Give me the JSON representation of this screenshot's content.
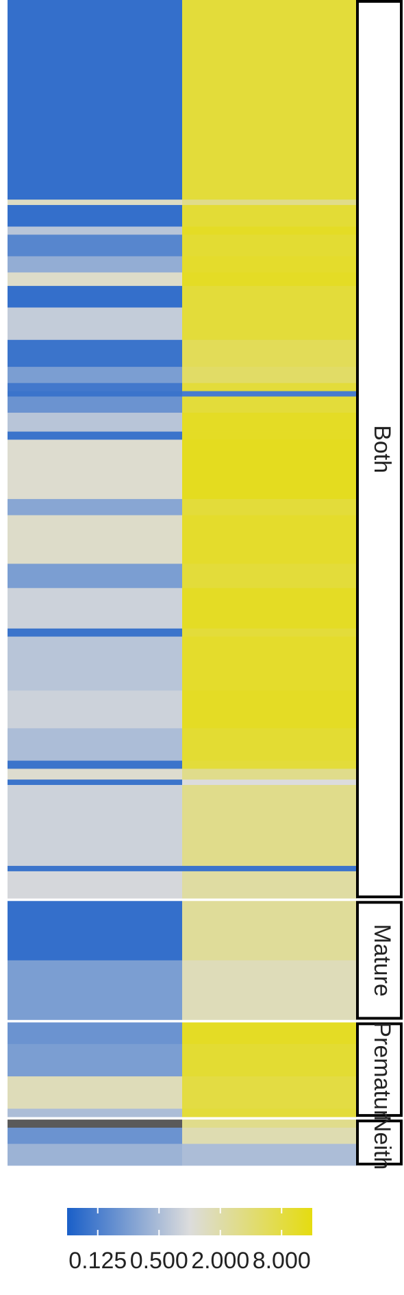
{
  "colors": {
    "low": "#1a5fc8",
    "mid": "#dcdcdc",
    "high": "#e5dc10",
    "missing": "#5a5a5a",
    "facet_border": "#000000"
  },
  "legend": {
    "ticks": [
      "0.125",
      "0.500",
      "2.000",
      "8.000"
    ],
    "values": [
      0.125,
      0.5,
      2.0,
      8.0
    ],
    "scale": "log2",
    "range": [
      0.0625,
      16
    ]
  },
  "chart_data": {
    "type": "heatmap",
    "columns": 2,
    "scale": "log2",
    "color_range": [
      0.0625,
      16
    ],
    "groups": [
      {
        "name": "Both",
        "segments": [
          {
            "rows": 74,
            "col1": 0.09,
            "col2": 9.0
          },
          {
            "rows": 2,
            "col1": 1.4,
            "col2": 3.0
          },
          {
            "rows": 8,
            "col1": 0.09,
            "col2": 9.5
          },
          {
            "rows": 3,
            "col1": 0.6,
            "col2": 12.0
          },
          {
            "rows": 8,
            "col1": 0.15,
            "col2": 10.0
          },
          {
            "rows": 6,
            "col1": 0.35,
            "col2": 11.0
          },
          {
            "rows": 5,
            "col1": 1.3,
            "col2": 12.0
          },
          {
            "rows": 8,
            "col1": 0.09,
            "col2": 9.0
          },
          {
            "rows": 12,
            "col1": 0.7,
            "col2": 9.0
          },
          {
            "rows": 10,
            "col1": 0.1,
            "col2": 6.0
          },
          {
            "rows": 6,
            "col1": 0.25,
            "col2": 5.0
          },
          {
            "rows": 3,
            "col1": 0.11,
            "col2": 9.0
          },
          {
            "rows": 2,
            "col1": 0.1,
            "col2": 0.12
          },
          {
            "rows": 6,
            "col1": 0.2,
            "col2": 9.0
          },
          {
            "rows": 7,
            "col1": 0.6,
            "col2": 12.0
          },
          {
            "rows": 3,
            "col1": 0.1,
            "col2": 12.0
          },
          {
            "rows": 22,
            "col1": 1.2,
            "col2": 13.0
          },
          {
            "rows": 6,
            "col1": 0.3,
            "col2": 9.0
          },
          {
            "rows": 18,
            "col1": 1.3,
            "col2": 11.0
          },
          {
            "rows": 9,
            "col1": 0.25,
            "col2": 9.0
          },
          {
            "rows": 15,
            "col1": 0.8,
            "col2": 12.0
          },
          {
            "rows": 3,
            "col1": 0.1,
            "col2": 9.0
          },
          {
            "rows": 20,
            "col1": 0.6,
            "col2": 11.0
          },
          {
            "rows": 14,
            "col1": 0.8,
            "col2": 12.0
          },
          {
            "rows": 12,
            "col1": 0.5,
            "col2": 10.0
          },
          {
            "rows": 3,
            "col1": 0.1,
            "col2": 9.0
          },
          {
            "rows": 4,
            "col1": 1.2,
            "col2": 3.0
          },
          {
            "rows": 2,
            "col1": 0.1,
            "col2": 1.0
          },
          {
            "rows": 30,
            "col1": 0.8,
            "col2": 3.0
          },
          {
            "rows": 2,
            "col1": 0.1,
            "col2": 0.1
          },
          {
            "rows": 10,
            "col1": 0.9,
            "col2": 2.2
          }
        ]
      },
      {
        "name": "Mature",
        "segments": [
          {
            "rows": 22,
            "col1": 0.09,
            "col2": 2.5
          },
          {
            "rows": 22,
            "col1": 0.25,
            "col2": 1.6
          }
        ]
      },
      {
        "name": "Prematur",
        "segments": [
          {
            "rows": 8,
            "col1": 0.2,
            "col2": 12.0
          },
          {
            "rows": 12,
            "col1": 0.25,
            "col2": 10.0
          },
          {
            "rows": 12,
            "col1": 1.6,
            "col2": 8.0
          },
          {
            "rows": 3,
            "col1": 0.5,
            "col2": 9.0
          }
        ]
      },
      {
        "name": "Neith",
        "segments": [
          {
            "rows": 3,
            "col1": null,
            "col2": 3.0
          },
          {
            "rows": 6,
            "col1": 0.2,
            "col2": 1.8
          },
          {
            "rows": 8,
            "col1": 0.4,
            "col2": 0.5
          }
        ]
      }
    ]
  }
}
